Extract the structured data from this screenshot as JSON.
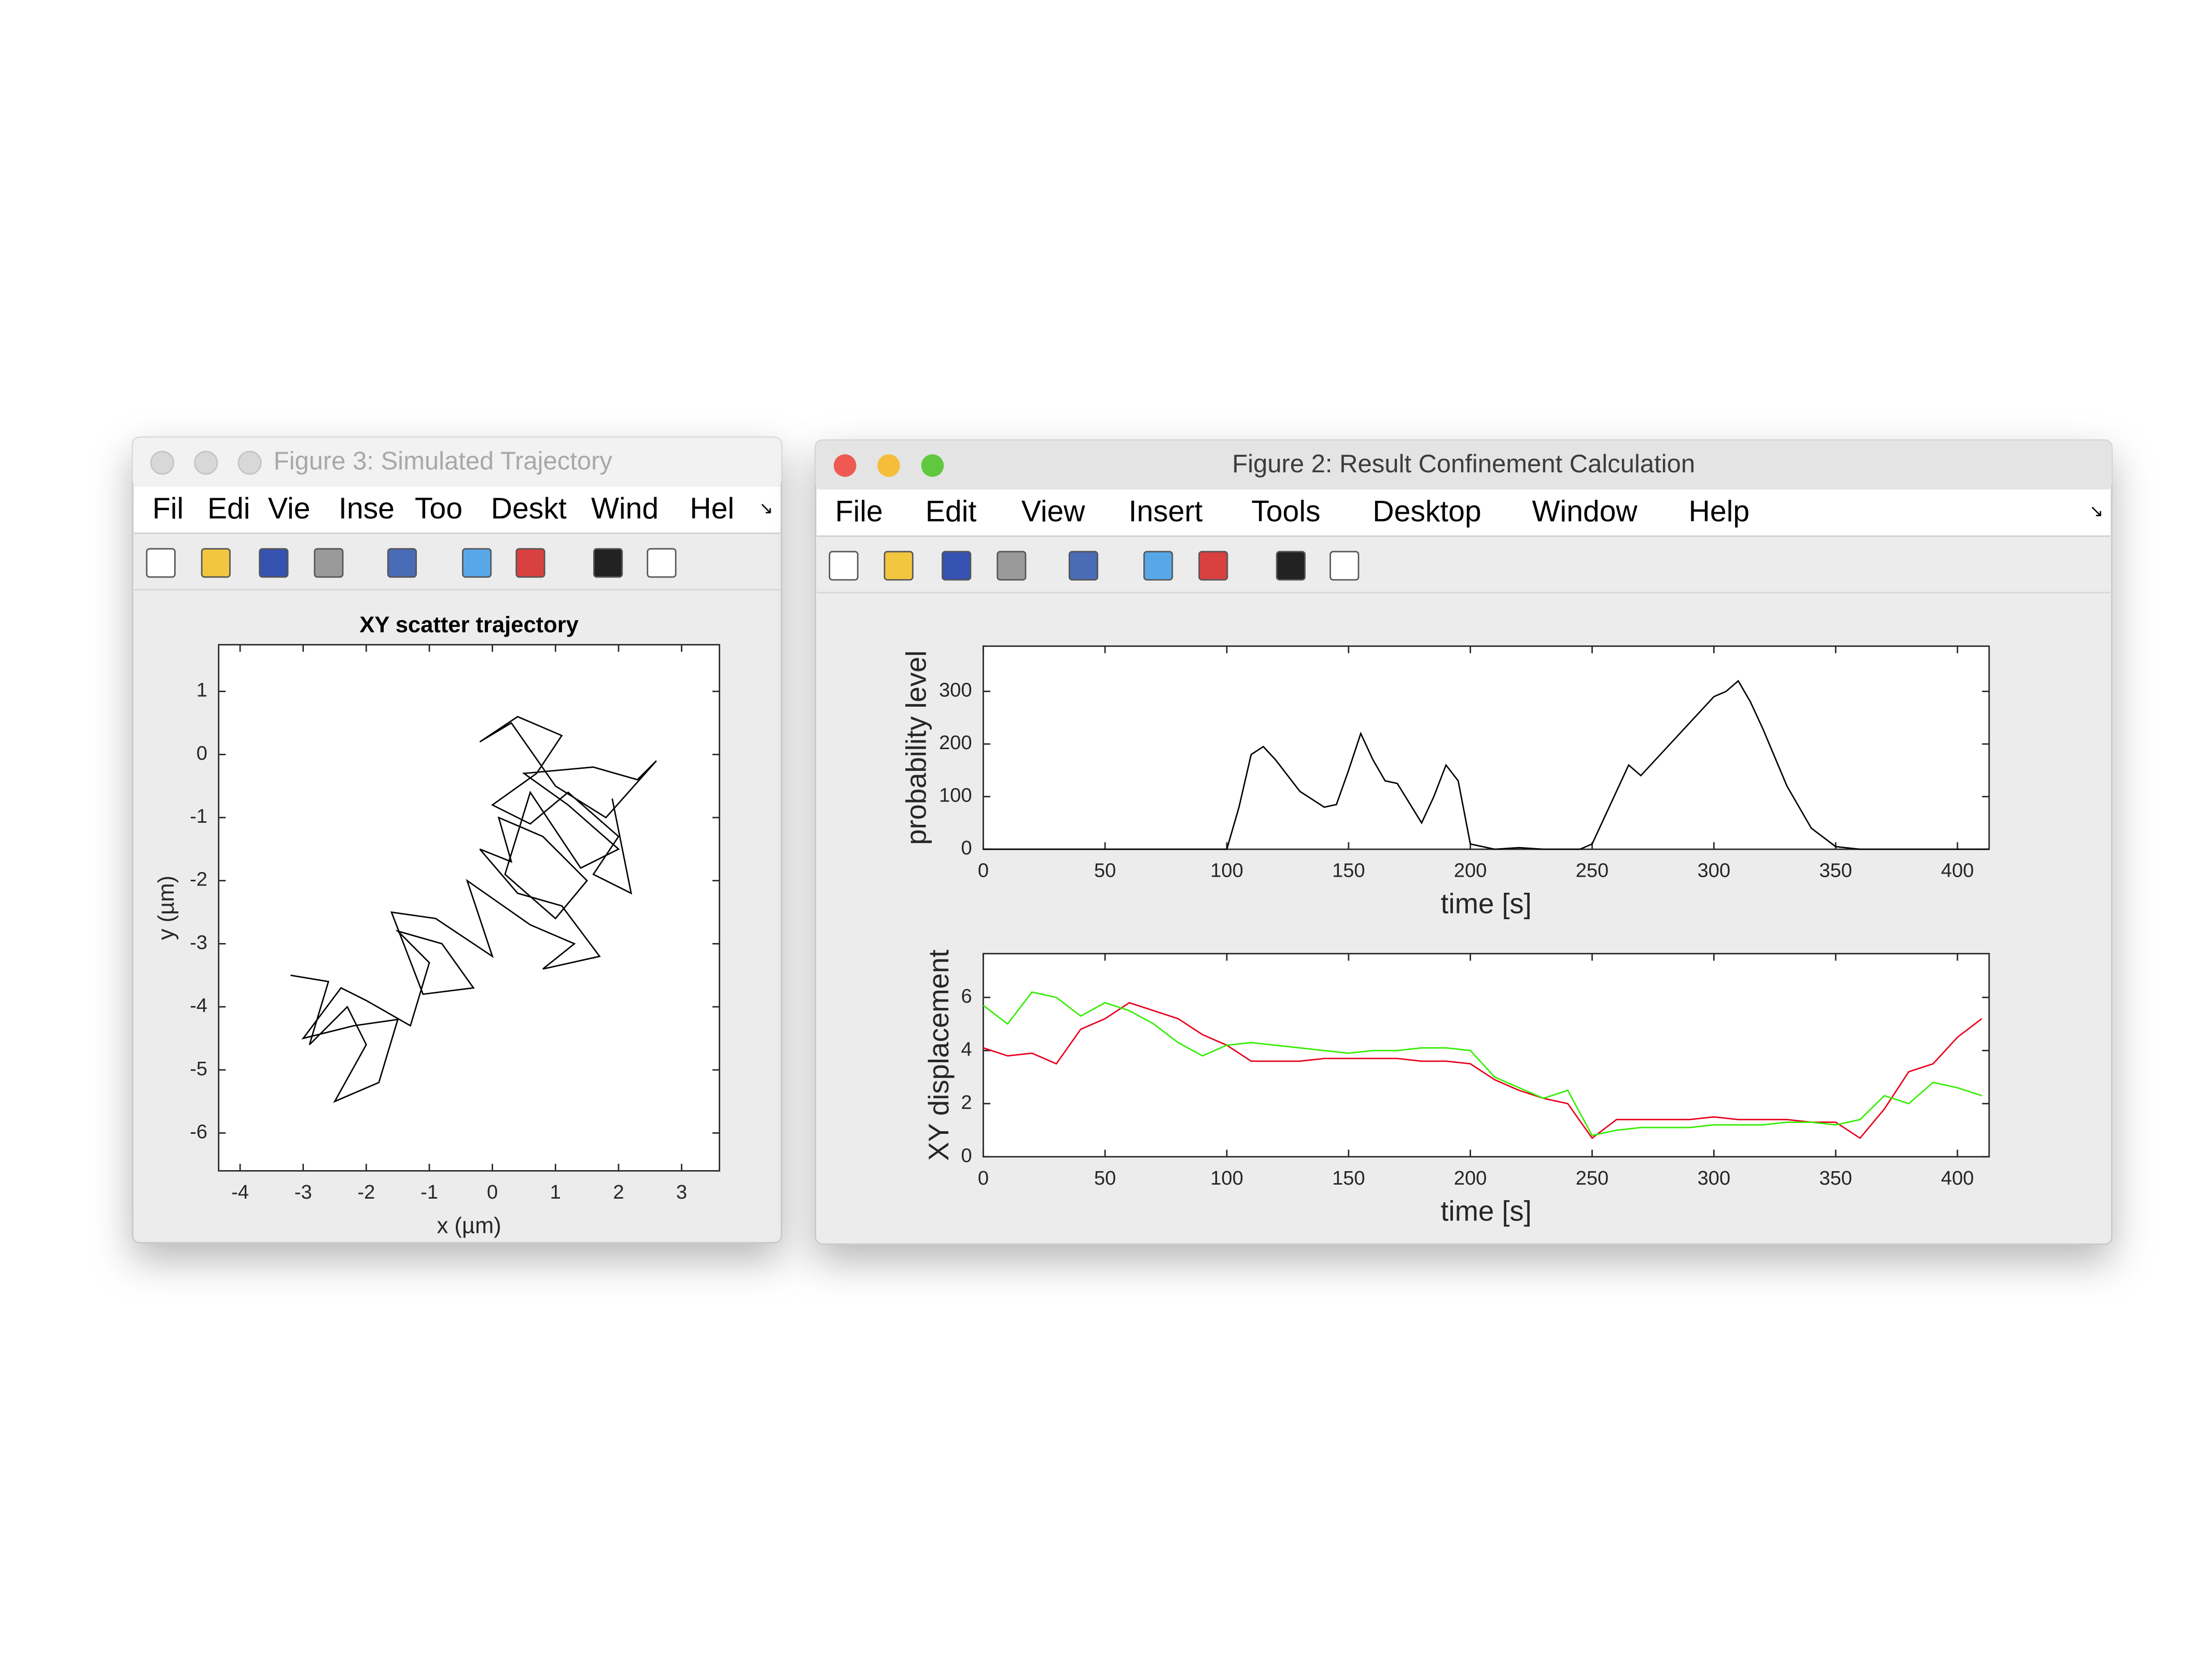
{
  "windows": [
    {
      "title": "Figure 3: Simulated Trajectory",
      "menu": [
        "Fil",
        "Edi",
        "Vie",
        "Inse",
        "Too",
        "Deskt",
        "Wind",
        "Hel"
      ],
      "charts": [
        {
          "type": "line",
          "title": "XY scatter trajectory",
          "x_label": "x (µm)",
          "y_label": "y (µm)",
          "x": [
            -3.2,
            -2.6,
            -2.9,
            -2.3,
            -2.0,
            -2.5,
            -1.8,
            -1.5,
            -2.2,
            -3.0,
            -2.4,
            -2.0,
            -1.3,
            -1.0,
            -1.5,
            -0.8,
            -0.3,
            -1.1,
            -1.6,
            -0.9,
            0.0,
            -0.4,
            0.6,
            1.3,
            0.8,
            1.7,
            1.1,
            0.4,
            -0.2,
            0.3,
            0.1,
            0.8,
            1.5,
            1.0,
            0.2,
            0.6,
            1.4,
            2.0,
            1.2,
            0.5,
            1.6,
            2.3,
            2.6,
            1.8,
            1.0,
            0.3,
            -0.2,
            0.4,
            1.1,
            0.7,
            0.0,
            0.6,
            1.2,
            2.0,
            1.6,
            2.2,
            1.9
          ],
          "values": [
            -3.5,
            -3.6,
            -4.6,
            -4.0,
            -4.6,
            -5.5,
            -5.2,
            -4.2,
            -4.3,
            -4.5,
            -3.7,
            -3.9,
            -4.3,
            -3.3,
            -2.8,
            -3.0,
            -3.7,
            -3.8,
            -2.5,
            -2.6,
            -3.2,
            -2.0,
            -2.7,
            -3.0,
            -3.4,
            -3.2,
            -2.4,
            -2.2,
            -1.5,
            -1.7,
            -1.0,
            -1.3,
            -2.0,
            -2.6,
            -1.9,
            -0.6,
            -1.8,
            -1.5,
            -0.8,
            -0.3,
            -0.2,
            -0.4,
            -0.1,
            -1.0,
            -0.5,
            0.5,
            0.2,
            0.6,
            0.3,
            -0.3,
            -0.8,
            -1.1,
            -0.6,
            -1.3,
            -1.9,
            -2.2,
            -0.7
          ],
          "color": "#000000",
          "xlim": [
            -4.34,
            3.6
          ],
          "ylim": [
            -6.6,
            1.74
          ],
          "xticks": [
            -4,
            -3,
            -2,
            -1,
            0,
            1,
            2,
            3
          ],
          "yticks": [
            -6,
            -5,
            -4,
            -3,
            -2,
            -1,
            0,
            1
          ]
        }
      ]
    },
    {
      "title": "Figure 2: Result Confinement Calculation",
      "menu": [
        "File",
        "Edit",
        "View",
        "Insert",
        "Tools",
        "Desktop",
        "Window",
        "Help"
      ],
      "charts": [
        {
          "type": "line",
          "x_label": "time [s]",
          "y_label": "probability level",
          "x": [
            0,
            50,
            95,
            100,
            105,
            110,
            115,
            120,
            130,
            140,
            145,
            150,
            155,
            160,
            165,
            170,
            180,
            185,
            190,
            195,
            200,
            210,
            220,
            230,
            245,
            250,
            260,
            265,
            270,
            280,
            290,
            300,
            305,
            310,
            315,
            320,
            330,
            340,
            350,
            360,
            380,
            413
          ],
          "values": [
            0,
            0,
            0,
            0,
            80,
            180,
            195,
            170,
            110,
            80,
            85,
            150,
            220,
            170,
            130,
            125,
            50,
            100,
            160,
            130,
            10,
            0,
            3,
            0,
            0,
            10,
            110,
            160,
            140,
            190,
            240,
            290,
            300,
            320,
            280,
            230,
            120,
            40,
            5,
            0,
            0,
            0
          ],
          "color": "#000000",
          "xlim": [
            0,
            413
          ],
          "ylim": [
            0,
            386
          ],
          "xticks": [
            0,
            50,
            100,
            150,
            200,
            250,
            300,
            350,
            400
          ],
          "yticks": [
            0,
            100,
            200,
            300
          ]
        },
        {
          "type": "line",
          "x_label": "time [s]",
          "y_label": "XY displacement",
          "x": [
            0,
            10,
            20,
            30,
            40,
            50,
            60,
            70,
            80,
            90,
            100,
            110,
            120,
            130,
            140,
            150,
            160,
            170,
            180,
            190,
            200,
            210,
            220,
            230,
            240,
            250,
            260,
            270,
            280,
            290,
            300,
            310,
            320,
            330,
            340,
            350,
            360,
            370,
            380,
            390,
            400,
            410
          ],
          "series": [
            {
              "color": "#e8001c",
              "values": [
                4.1,
                3.8,
                3.9,
                3.5,
                4.8,
                5.2,
                5.8,
                5.5,
                5.2,
                4.6,
                4.2,
                3.6,
                3.6,
                3.6,
                3.7,
                3.7,
                3.7,
                3.7,
                3.6,
                3.6,
                3.5,
                2.9,
                2.5,
                2.2,
                2.0,
                0.7,
                1.4,
                1.4,
                1.4,
                1.4,
                1.5,
                1.4,
                1.4,
                1.4,
                1.3,
                1.3,
                0.7,
                1.8,
                3.2,
                3.5,
                4.5,
                5.2
              ]
            },
            {
              "color": "#33ee00",
              "values": [
                5.7,
                5.0,
                6.2,
                6.0,
                5.3,
                5.8,
                5.5,
                5.0,
                4.3,
                3.8,
                4.2,
                4.3,
                4.2,
                4.1,
                4.0,
                3.9,
                4.0,
                4.0,
                4.1,
                4.1,
                4.0,
                3.0,
                2.6,
                2.2,
                2.5,
                0.8,
                1.0,
                1.1,
                1.1,
                1.1,
                1.2,
                1.2,
                1.2,
                1.3,
                1.3,
                1.2,
                1.4,
                2.3,
                2.0,
                2.8,
                2.6,
                2.3
              ]
            }
          ],
          "xlim": [
            0,
            413
          ],
          "ylim": [
            0,
            7.65
          ],
          "xticks": [
            0,
            50,
            100,
            150,
            200,
            250,
            300,
            350,
            400
          ],
          "yticks": [
            0,
            2,
            4,
            6
          ]
        }
      ]
    }
  ]
}
